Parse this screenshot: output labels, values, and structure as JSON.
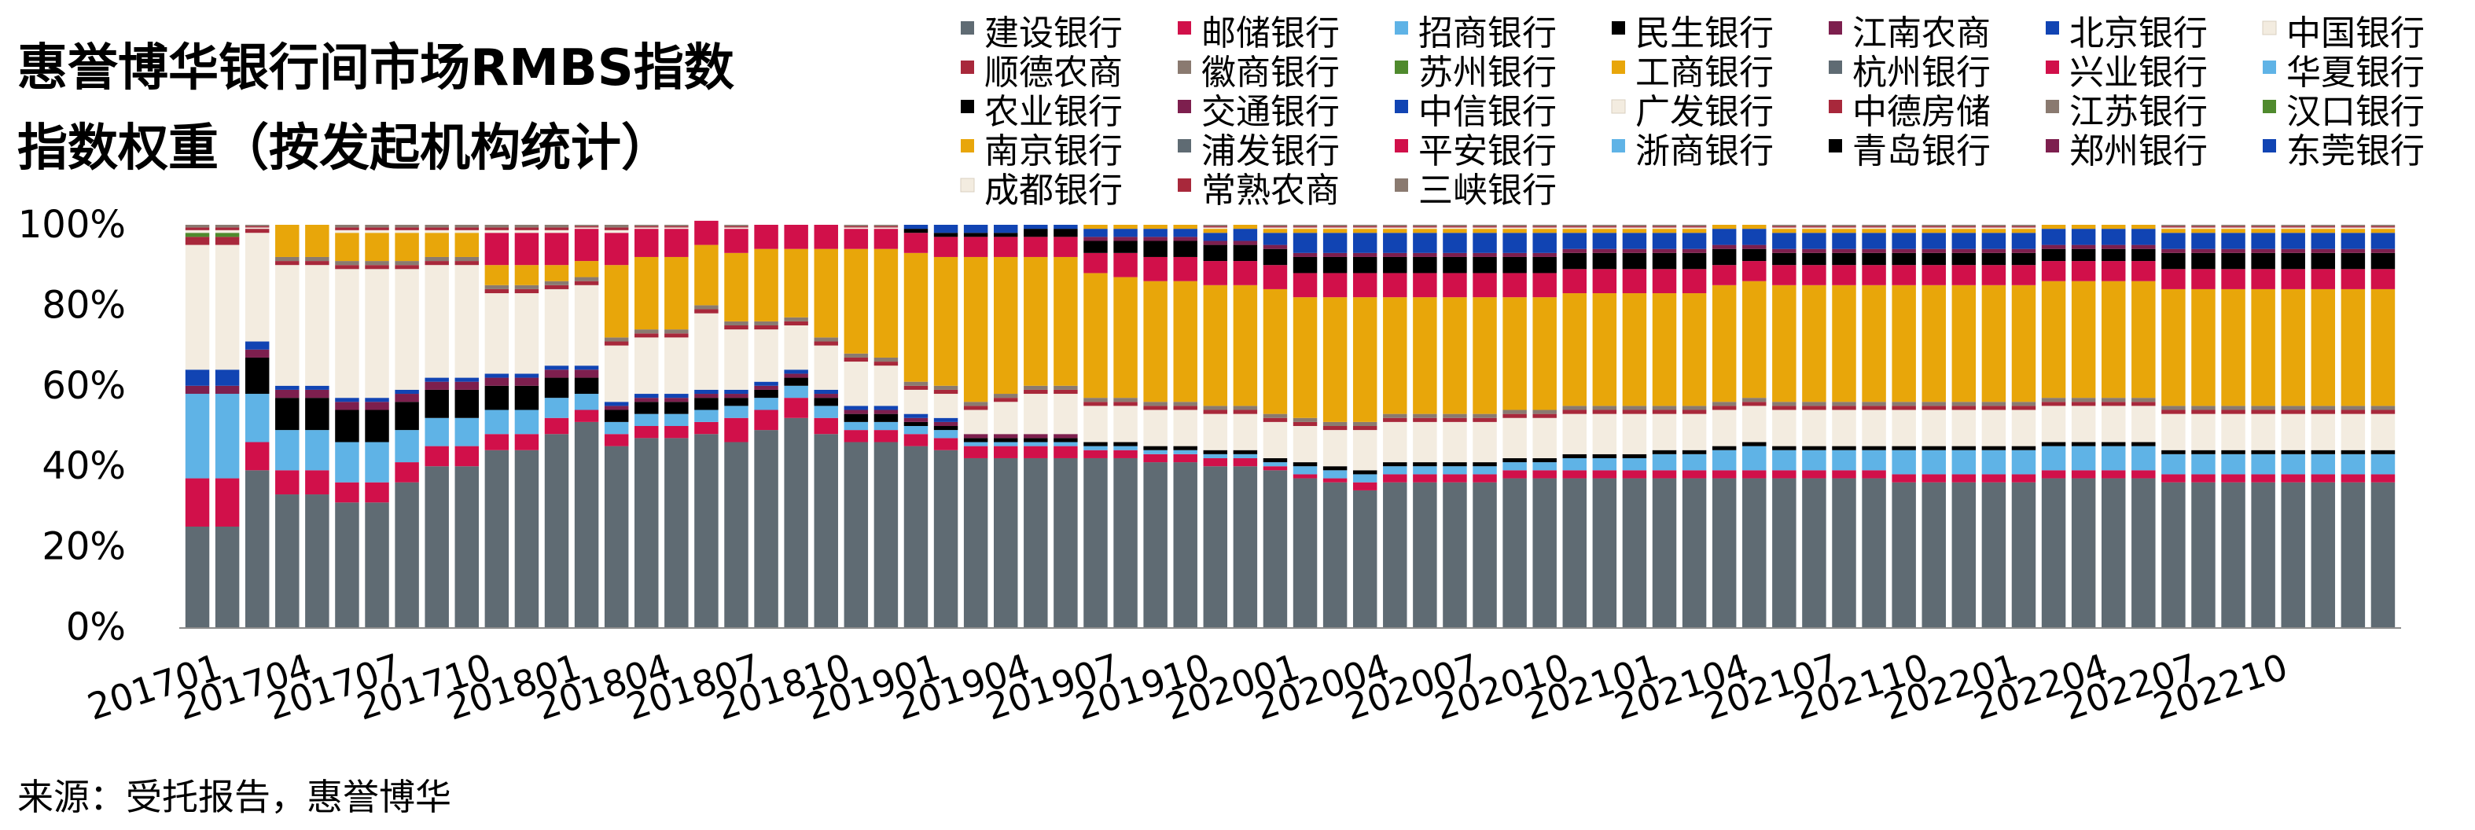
{
  "chart_data": {
    "type": "bar",
    "stacked": true,
    "title": "惠誉博华银行间市场RMBS指数指数权重（按发起机构统计）",
    "title_lines": [
      "惠誉博华银行间市场RMBS指数",
      "指数权重（按发起机构统计）"
    ],
    "source": "来源：受托报告，惠誉博华",
    "ylim": [
      0,
      100
    ],
    "y_tick_labels": [
      "0%",
      "20%",
      "40%",
      "60%",
      "80%",
      "100%"
    ],
    "x_tick_labels": [
      "201701",
      "201704",
      "201707",
      "201710",
      "201801",
      "201804",
      "201807",
      "201810",
      "201901",
      "201904",
      "201907",
      "201910",
      "202001",
      "202004",
      "202007",
      "202010",
      "202101",
      "202104",
      "202107",
      "202110",
      "202201",
      "202204",
      "202207",
      "202210"
    ],
    "legend_position": "top-right",
    "grid": false,
    "series": [
      {
        "name": "建设银行",
        "color": "#5f6b73"
      },
      {
        "name": "邮储银行",
        "color": "#d1104a"
      },
      {
        "name": "招商银行",
        "color": "#5fb3e6"
      },
      {
        "name": "民生银行",
        "color": "#000000"
      },
      {
        "name": "江南农商",
        "color": "#7d1f4e"
      },
      {
        "name": "北京银行",
        "color": "#1144b3"
      },
      {
        "name": "中国银行",
        "color": "#f3ece0"
      },
      {
        "name": "顺德农商",
        "color": "#a8283b"
      },
      {
        "name": "徽商银行",
        "color": "#8a7a70"
      },
      {
        "name": "苏州银行",
        "color": "#4f8a2d"
      },
      {
        "name": "工商银行",
        "color": "#e8a60a"
      },
      {
        "name": "杭州银行",
        "color": "#5f6b73"
      },
      {
        "name": "兴业银行",
        "color": "#d1104a"
      },
      {
        "name": "华夏银行",
        "color": "#5fb3e6"
      },
      {
        "name": "农业银行",
        "color": "#000000"
      },
      {
        "name": "交通银行",
        "color": "#7d1f4e"
      },
      {
        "name": "中信银行",
        "color": "#1144b3"
      },
      {
        "name": "广发银行",
        "color": "#f3ece0"
      },
      {
        "name": "中德房储",
        "color": "#a8283b"
      },
      {
        "name": "江苏银行",
        "color": "#8a7a70"
      },
      {
        "name": "汉口银行",
        "color": "#4f8a2d"
      },
      {
        "name": "南京银行",
        "color": "#e8a60a"
      },
      {
        "name": "浦发银行",
        "color": "#5f6b73"
      },
      {
        "name": "平安银行",
        "color": "#d1104a"
      },
      {
        "name": "浙商银行",
        "color": "#5fb3e6"
      },
      {
        "name": "青岛银行",
        "color": "#000000"
      },
      {
        "name": "郑州银行",
        "color": "#7d1f4e"
      },
      {
        "name": "东莞银行",
        "color": "#1144b3"
      },
      {
        "name": "成都银行",
        "color": "#f3ece0"
      },
      {
        "name": "常熟农商",
        "color": "#a8283b"
      },
      {
        "name": "三峡银行",
        "color": "#8a7a70"
      }
    ],
    "bars": [
      [
        25,
        12,
        21,
        0,
        2,
        4,
        31,
        2,
        0,
        1
      ],
      [
        25,
        12,
        21,
        0,
        2,
        4,
        31,
        2,
        0,
        1
      ],
      [
        39,
        7,
        12,
        9,
        2,
        2,
        27,
        1
      ],
      [
        33,
        6,
        10,
        8,
        2,
        1,
        30,
        1,
        1,
        0,
        8
      ],
      [
        33,
        6,
        10,
        8,
        2,
        1,
        30,
        1,
        1,
        0,
        8
      ],
      [
        31,
        5,
        10,
        8,
        2,
        1,
        32,
        1,
        1,
        0,
        7
      ],
      [
        31,
        5,
        10,
        8,
        2,
        1,
        32,
        1,
        1,
        0,
        7
      ],
      [
        36,
        5,
        8,
        7,
        2,
        1,
        30,
        1,
        1,
        0,
        7
      ],
      [
        40,
        5,
        7,
        7,
        2,
        1,
        28,
        1,
        1,
        0,
        6
      ],
      [
        40,
        5,
        7,
        7,
        2,
        1,
        28,
        1,
        1,
        0,
        6
      ],
      [
        44,
        4,
        6,
        6,
        2,
        1,
        20,
        1,
        1,
        0,
        5,
        0,
        8
      ],
      [
        44,
        4,
        6,
        6,
        2,
        1,
        20,
        1,
        1,
        0,
        5,
        0,
        8
      ],
      [
        48,
        4,
        5,
        5,
        2,
        1,
        19,
        1,
        1,
        0,
        4,
        0,
        8
      ],
      [
        51,
        3,
        4,
        4,
        2,
        1,
        20,
        1,
        1,
        0,
        4,
        0,
        8
      ],
      [
        45,
        3,
        3,
        3,
        1,
        1,
        14,
        1,
        1,
        0,
        18,
        0,
        8
      ],
      [
        47,
        3,
        3,
        3,
        1,
        1,
        14,
        1,
        1,
        0,
        18,
        0,
        7
      ],
      [
        47,
        3,
        3,
        3,
        1,
        1,
        14,
        1,
        1,
        0,
        18,
        0,
        7
      ],
      [
        48,
        3,
        3,
        3,
        1,
        1,
        19,
        1,
        1,
        0,
        15,
        0,
        6
      ],
      [
        46,
        6,
        3,
        2,
        1,
        1,
        15,
        1,
        1,
        0,
        17,
        0,
        6
      ],
      [
        49,
        5,
        3,
        2,
        1,
        1,
        13,
        1,
        1,
        0,
        18,
        0,
        6
      ],
      [
        52,
        5,
        3,
        2,
        1,
        1,
        11,
        1,
        1,
        0,
        17,
        0,
        6
      ],
      [
        48,
        4,
        3,
        2,
        1,
        1,
        11,
        1,
        1,
        0,
        22,
        0,
        6
      ],
      [
        46,
        3,
        2,
        2,
        1,
        1,
        11,
        1,
        1,
        0,
        26,
        0,
        5
      ],
      [
        46,
        3,
        2,
        2,
        1,
        1,
        10,
        1,
        1,
        0,
        27,
        0,
        5
      ],
      [
        45,
        3,
        2,
        1,
        1,
        1,
        6,
        1,
        1,
        0,
        32,
        0,
        5,
        0,
        1,
        0,
        1
      ],
      [
        44,
        3,
        2,
        1,
        1,
        1,
        6,
        1,
        1,
        0,
        32,
        0,
        5,
        0,
        1,
        0,
        2
      ],
      [
        42,
        3,
        1,
        1,
        1,
        0,
        6,
        1,
        1,
        0,
        36,
        0,
        5,
        0,
        1,
        0,
        2
      ],
      [
        42,
        3,
        1,
        1,
        1,
        0,
        8,
        1,
        1,
        0,
        34,
        0,
        5,
        0,
        1,
        0,
        2
      ],
      [
        42,
        3,
        1,
        1,
        1,
        0,
        10,
        1,
        1,
        0,
        32,
        0,
        5,
        0,
        2,
        0,
        1
      ],
      [
        42,
        3,
        1,
        1,
        1,
        0,
        10,
        1,
        1,
        0,
        32,
        0,
        5,
        0,
        2,
        0,
        1
      ],
      [
        42,
        2,
        1,
        1,
        0,
        0,
        9,
        1,
        1,
        0,
        31,
        0,
        5,
        0,
        3,
        1,
        2,
        0,
        0,
        0,
        0,
        1
      ],
      [
        42,
        2,
        1,
        1,
        0,
        0,
        9,
        1,
        1,
        0,
        30,
        0,
        6,
        0,
        3,
        1,
        2,
        0,
        0,
        0,
        0,
        1
      ],
      [
        41,
        2,
        1,
        1,
        0,
        0,
        9,
        1,
        1,
        0,
        30,
        0,
        6,
        0,
        4,
        1,
        2,
        0,
        0,
        0,
        0,
        1
      ],
      [
        41,
        2,
        1,
        1,
        0,
        0,
        9,
        1,
        1,
        0,
        30,
        0,
        6,
        0,
        4,
        1,
        2,
        0,
        0,
        0,
        0,
        1
      ],
      [
        40,
        2,
        1,
        1,
        0,
        0,
        9,
        1,
        1,
        0,
        30,
        0,
        6,
        0,
        4,
        1,
        2,
        0,
        0,
        0,
        0,
        1
      ],
      [
        40,
        2,
        1,
        1,
        0,
        0,
        9,
        1,
        1,
        0,
        30,
        0,
        6,
        0,
        4,
        1,
        3,
        0,
        0,
        0,
        0,
        1
      ],
      [
        39,
        1,
        1,
        1,
        0,
        0,
        9,
        1,
        1,
        0,
        31,
        0,
        6,
        0,
        4,
        1,
        3,
        0,
        0,
        0,
        0,
        1
      ],
      [
        37,
        1,
        2,
        1,
        0,
        0,
        9,
        1,
        1,
        0,
        30,
        0,
        6,
        0,
        4,
        1,
        5,
        0,
        0,
        0,
        0,
        1
      ],
      [
        36,
        1,
        2,
        1,
        0,
        0,
        9,
        1,
        1,
        0,
        31,
        0,
        6,
        0,
        4,
        1,
        5,
        0,
        0,
        0,
        0,
        1
      ],
      [
        34,
        2,
        2,
        1,
        0,
        0,
        10,
        1,
        1,
        0,
        31,
        0,
        6,
        0,
        4,
        1,
        5,
        0,
        0,
        0,
        0,
        1
      ],
      [
        36,
        2,
        2,
        1,
        0,
        0,
        10,
        1,
        1,
        0,
        29,
        0,
        6,
        0,
        4,
        1,
        5,
        0,
        0,
        0,
        0,
        1
      ],
      [
        36,
        2,
        2,
        1,
        0,
        0,
        10,
        1,
        1,
        0,
        29,
        0,
        6,
        0,
        4,
        1,
        5,
        0,
        0,
        0,
        0,
        1
      ],
      [
        36,
        2,
        2,
        1,
        0,
        0,
        10,
        1,
        1,
        0,
        29,
        0,
        6,
        0,
        4,
        1,
        5,
        0,
        0,
        0,
        0,
        1
      ],
      [
        36,
        2,
        2,
        1,
        0,
        0,
        10,
        1,
        1,
        0,
        29,
        0,
        6,
        0,
        4,
        1,
        5,
        0,
        0,
        0,
        0,
        1
      ],
      [
        37,
        2,
        2,
        1,
        0,
        0,
        10,
        1,
        1,
        0,
        28,
        0,
        6,
        0,
        4,
        1,
        5,
        0,
        0,
        0,
        0,
        1
      ],
      [
        37,
        2,
        2,
        1,
        0,
        0,
        10,
        1,
        1,
        0,
        28,
        0,
        6,
        0,
        4,
        1,
        5,
        0,
        0,
        0,
        0,
        1
      ],
      [
        37,
        2,
        3,
        1,
        0,
        0,
        10,
        1,
        1,
        0,
        28,
        0,
        6,
        0,
        4,
        1,
        4,
        0,
        0,
        0,
        0,
        1
      ],
      [
        37,
        2,
        3,
        1,
        0,
        0,
        10,
        1,
        1,
        0,
        28,
        0,
        6,
        0,
        4,
        1,
        4,
        0,
        0,
        0,
        0,
        1
      ],
      [
        37,
        2,
        3,
        1,
        0,
        0,
        10,
        1,
        1,
        0,
        28,
        0,
        6,
        0,
        4,
        1,
        4,
        0,
        0,
        0,
        0,
        1
      ],
      [
        37,
        2,
        4,
        1,
        0,
        0,
        9,
        1,
        1,
        0,
        28,
        0,
        6,
        0,
        4,
        1,
        4,
        0,
        0,
        0,
        0,
        1
      ],
      [
        37,
        2,
        4,
        1,
        0,
        0,
        9,
        1,
        1,
        0,
        28,
        0,
        6,
        0,
        4,
        1,
        4,
        0,
        0,
        0,
        0,
        1
      ],
      [
        37,
        2,
        5,
        1,
        0,
        0,
        9,
        1,
        1,
        0,
        29,
        0,
        5,
        0,
        4,
        1,
        4,
        0,
        0,
        0,
        0,
        1
      ],
      [
        37,
        2,
        6,
        1,
        0,
        0,
        9,
        1,
        1,
        0,
        29,
        0,
        5,
        0,
        3,
        1,
        4,
        0,
        0,
        0,
        0,
        1
      ],
      [
        37,
        2,
        5,
        1,
        0,
        0,
        9,
        1,
        1,
        0,
        29,
        0,
        5,
        0,
        3,
        1,
        4,
        0,
        0,
        0,
        0,
        1
      ],
      [
        37,
        2,
        5,
        1,
        0,
        0,
        9,
        1,
        1,
        0,
        29,
        0,
        5,
        0,
        3,
        1,
        4,
        0,
        0,
        0,
        0,
        1
      ],
      [
        37,
        2,
        5,
        1,
        0,
        0,
        9,
        1,
        1,
        0,
        29,
        0,
        5,
        0,
        3,
        1,
        4,
        0,
        0,
        0,
        0,
        1
      ],
      [
        37,
        2,
        5,
        1,
        0,
        0,
        9,
        1,
        1,
        0,
        29,
        0,
        5,
        0,
        3,
        1,
        4,
        0,
        0,
        0,
        0,
        1
      ],
      [
        36,
        2,
        6,
        1,
        0,
        0,
        9,
        1,
        1,
        0,
        29,
        0,
        5,
        0,
        3,
        1,
        4,
        0,
        0,
        0,
        0,
        1
      ],
      [
        36,
        2,
        6,
        1,
        0,
        0,
        9,
        1,
        1,
        0,
        29,
        0,
        5,
        0,
        3,
        1,
        4,
        0,
        0,
        0,
        0,
        1
      ],
      [
        36,
        2,
        6,
        1,
        0,
        0,
        9,
        1,
        1,
        0,
        29,
        0,
        5,
        0,
        3,
        1,
        4,
        0,
        0,
        0,
        0,
        1
      ],
      [
        36,
        2,
        6,
        1,
        0,
        0,
        9,
        1,
        1,
        0,
        29,
        0,
        5,
        0,
        3,
        1,
        4,
        0,
        0,
        0,
        0,
        1
      ],
      [
        36,
        2,
        6,
        1,
        0,
        0,
        9,
        1,
        1,
        0,
        29,
        0,
        5,
        0,
        3,
        1,
        4,
        0,
        0,
        0,
        0,
        1
      ],
      [
        37,
        2,
        6,
        1,
        0,
        0,
        9,
        1,
        1,
        0,
        29,
        0,
        5,
        0,
        3,
        1,
        4,
        0,
        0,
        0,
        0,
        1
      ],
      [
        37,
        2,
        6,
        1,
        0,
        0,
        9,
        1,
        1,
        0,
        29,
        0,
        5,
        0,
        3,
        1,
        4,
        0,
        0,
        0,
        0,
        1
      ],
      [
        37,
        2,
        6,
        1,
        0,
        0,
        9,
        1,
        1,
        0,
        29,
        0,
        5,
        0,
        3,
        1,
        4,
        0,
        0,
        0,
        0,
        1
      ],
      [
        37,
        2,
        6,
        1,
        0,
        0,
        9,
        1,
        1,
        0,
        29,
        0,
        5,
        0,
        3,
        1,
        4,
        0,
        0,
        0,
        0,
        1
      ],
      [
        36,
        2,
        5,
        1,
        0,
        0,
        9,
        1,
        1,
        0,
        29,
        0,
        5,
        0,
        4,
        1,
        4,
        0,
        0,
        0,
        0,
        1
      ],
      [
        36,
        2,
        5,
        1,
        0,
        0,
        9,
        1,
        1,
        0,
        29,
        0,
        5,
        0,
        4,
        1,
        4,
        0,
        0,
        0,
        0,
        1
      ],
      [
        36,
        2,
        5,
        1,
        0,
        0,
        9,
        1,
        1,
        0,
        29,
        0,
        5,
        0,
        4,
        1,
        4,
        0,
        0,
        0,
        0,
        1
      ],
      [
        36,
        2,
        5,
        1,
        0,
        0,
        9,
        1,
        1,
        0,
        29,
        0,
        5,
        0,
        4,
        1,
        4,
        0,
        0,
        0,
        0,
        1
      ],
      [
        36,
        2,
        5,
        1,
        0,
        0,
        9,
        1,
        1,
        0,
        29,
        0,
        5,
        0,
        4,
        1,
        4,
        0,
        0,
        0,
        0,
        1
      ],
      [
        36,
        2,
        5,
        1,
        0,
        0,
        9,
        1,
        1,
        0,
        29,
        0,
        5,
        0,
        4,
        1,
        4,
        0,
        0,
        0,
        0,
        1
      ],
      [
        36,
        2,
        5,
        1,
        0,
        0,
        9,
        1,
        1,
        0,
        29,
        0,
        5,
        0,
        4,
        1,
        4,
        0,
        0,
        0,
        0,
        1
      ],
      [
        36,
        2,
        5,
        1,
        0,
        0,
        9,
        1,
        1,
        0,
        29,
        0,
        5,
        0,
        4,
        1,
        4,
        0,
        0,
        0,
        0,
        1
      ]
    ]
  }
}
